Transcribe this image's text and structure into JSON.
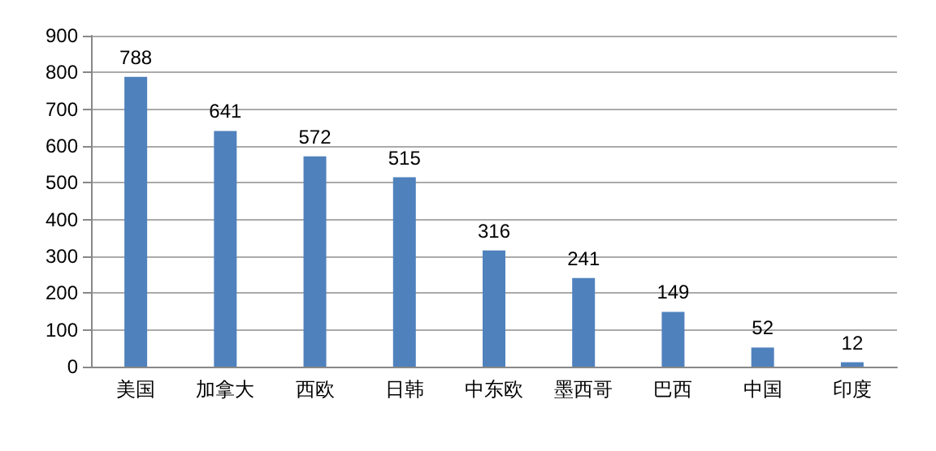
{
  "chart_data": {
    "type": "bar",
    "categories": [
      "美国",
      "加拿大",
      "西欧",
      "日韩",
      "中东欧",
      "墨西哥",
      "巴西",
      "中国",
      "印度"
    ],
    "values": [
      788,
      641,
      572,
      515,
      316,
      241,
      149,
      52,
      12
    ],
    "color": "#4f81bd",
    "ylim": [
      0,
      900
    ],
    "yticks": [
      0,
      100,
      200,
      300,
      400,
      500,
      600,
      700,
      800,
      900
    ],
    "grid": "y",
    "data_labels": true
  }
}
